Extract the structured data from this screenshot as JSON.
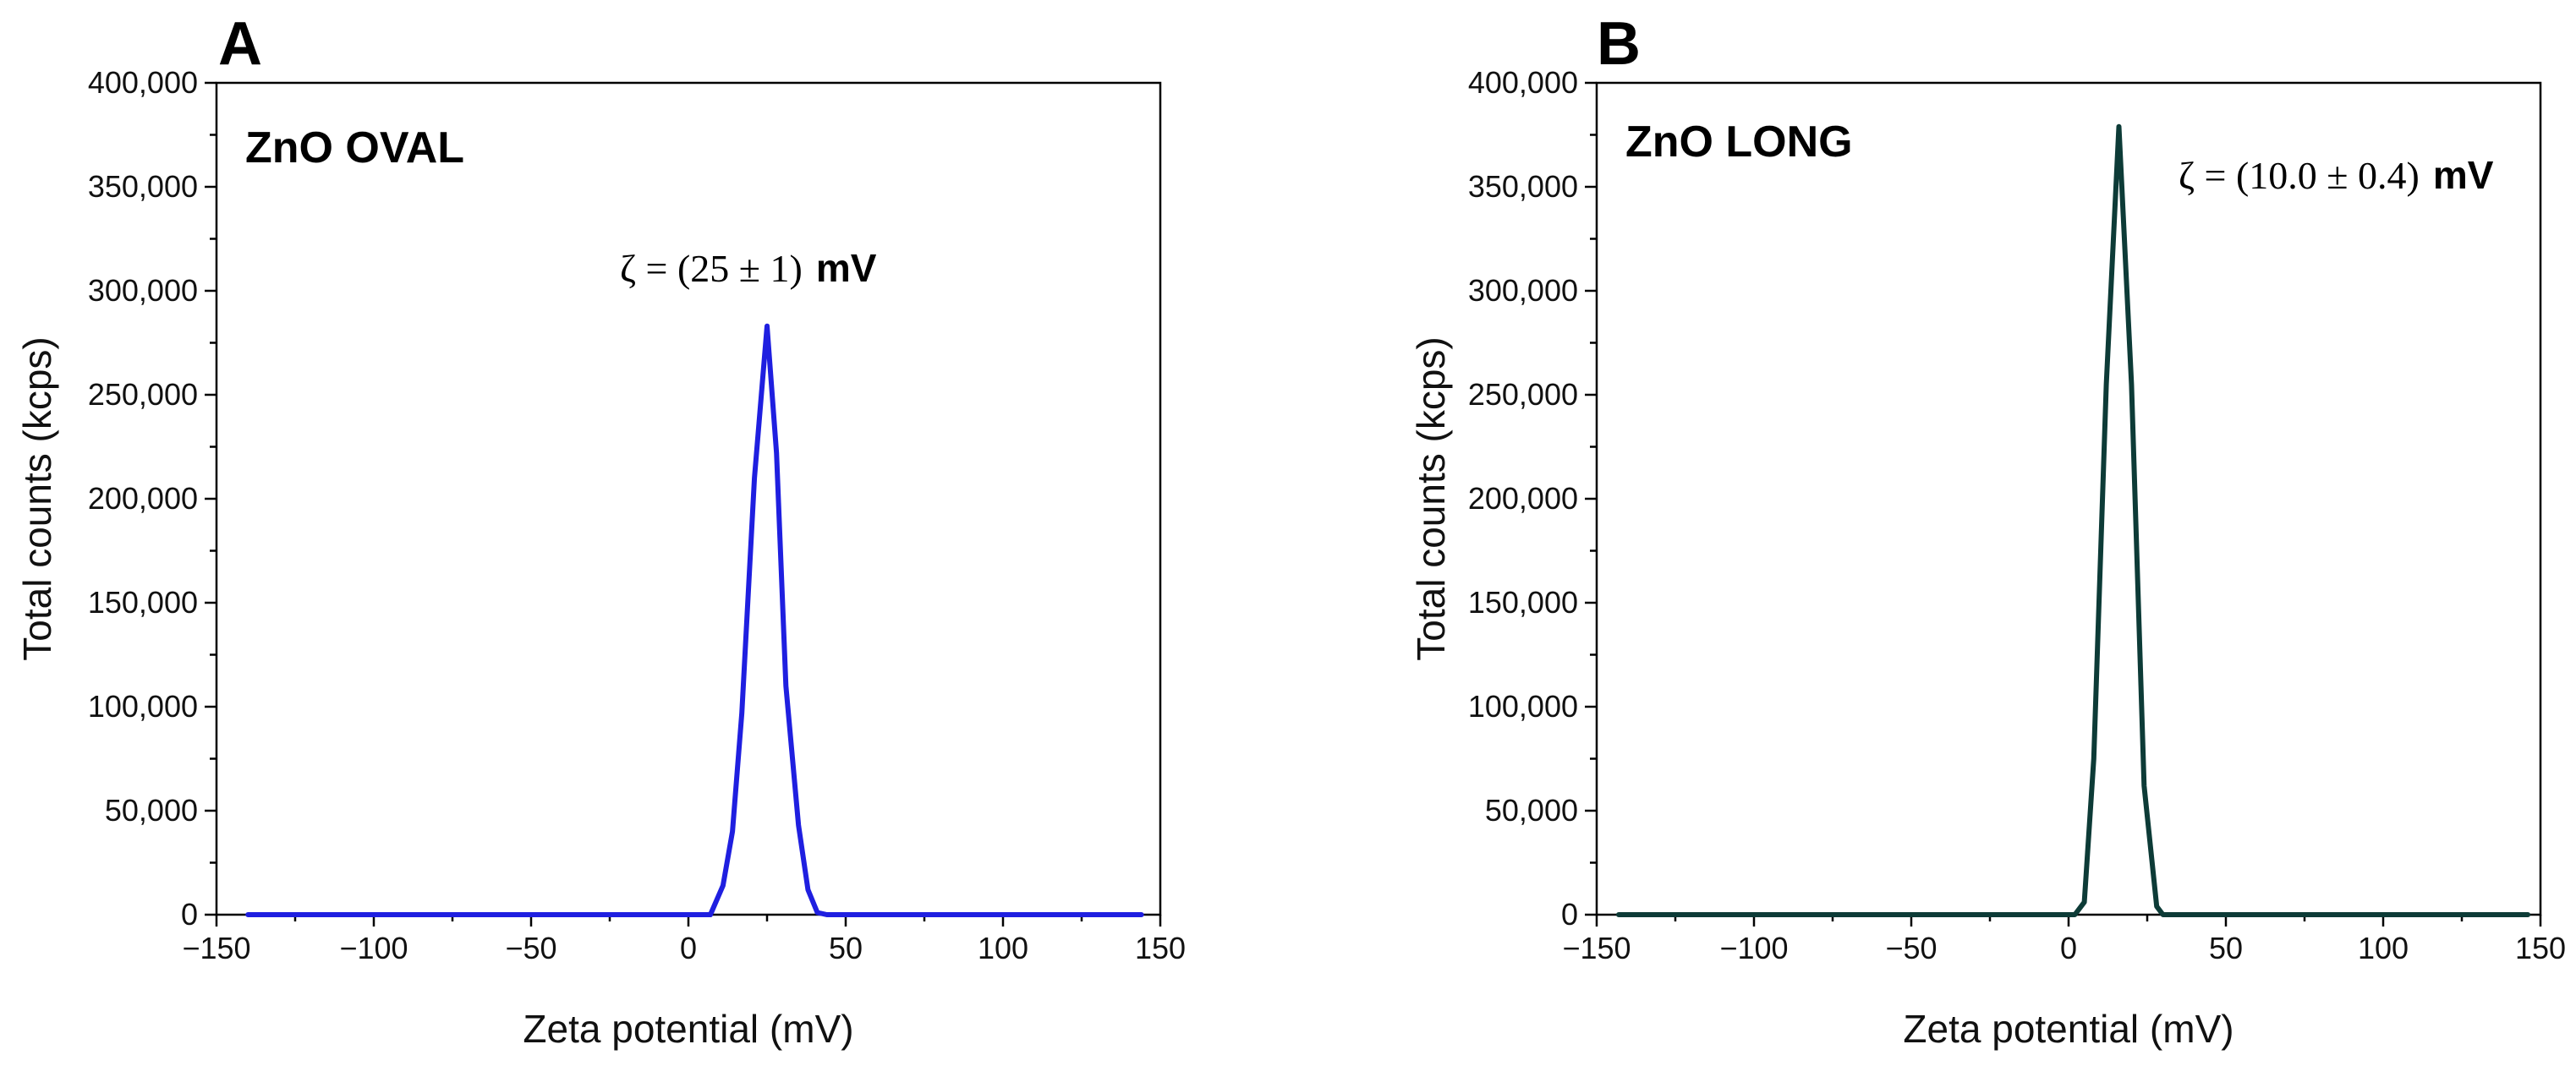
{
  "chart_data": [
    {
      "type": "line",
      "panel": "A",
      "annotation_label": "ZnO OVAL",
      "zeta_text": "ζ = (25 ± 1)",
      "zeta_unit": "mV",
      "xlabel": "Zeta potential (mV)",
      "ylabel": "Total counts (kcps)",
      "xlim": [
        -150,
        150
      ],
      "ylim": [
        0,
        400000
      ],
      "x_ticks": [
        -150,
        -100,
        -50,
        0,
        50,
        100,
        150
      ],
      "x_tick_labels": [
        "−150",
        "−100",
        "−50",
        "0",
        "50",
        "100",
        "150"
      ],
      "y_ticks": [
        0,
        50000,
        100000,
        150000,
        200000,
        250000,
        300000,
        350000,
        400000
      ],
      "y_tick_labels": [
        "0",
        "50,000",
        "100,000",
        "150,000",
        "200,000",
        "250,000",
        "300,000",
        "350,000",
        "400,000"
      ],
      "line_color": "#1f1fe0",
      "series": [
        {
          "name": "ZnO OVAL",
          "x": [
            -140,
            -100,
            -50,
            0,
            7,
            11,
            14,
            17,
            21,
            25,
            28,
            31,
            35,
            38,
            41,
            44,
            60,
            100,
            144
          ],
          "y": [
            0,
            0,
            0,
            0,
            0,
            14000,
            40000,
            97000,
            210000,
            283000,
            222000,
            110000,
            43000,
            12000,
            1000,
            0,
            0,
            0,
            0
          ]
        }
      ]
    },
    {
      "type": "line",
      "panel": "B",
      "annotation_label": "ZnO LONG",
      "zeta_text": "ζ = (10.0 ± 0.4)",
      "zeta_unit": "mV",
      "xlabel": "Zeta potential (mV)",
      "ylabel": "Total counts (kcps)",
      "xlim": [
        -150,
        150
      ],
      "ylim": [
        0,
        400000
      ],
      "x_ticks": [
        -150,
        -100,
        -50,
        0,
        50,
        100,
        150
      ],
      "x_tick_labels": [
        "−150",
        "−100",
        "−50",
        "0",
        "50",
        "100",
        "150"
      ],
      "y_ticks": [
        0,
        50000,
        100000,
        150000,
        200000,
        250000,
        300000,
        350000,
        400000
      ],
      "y_tick_labels": [
        "0",
        "50,000",
        "100,000",
        "150,000",
        "200,000",
        "250,000",
        "300,000",
        "350,000",
        "400,000"
      ],
      "line_color": "#0d3b37",
      "series": [
        {
          "name": "ZnO LONG",
          "x": [
            -143,
            -100,
            -50,
            0,
            2,
            5,
            8,
            12,
            16,
            20,
            24,
            28,
            30,
            60,
            100,
            146
          ],
          "y": [
            0,
            0,
            0,
            0,
            0,
            6000,
            75000,
            255000,
            379000,
            255000,
            62000,
            4000,
            0,
            0,
            0,
            0
          ]
        }
      ]
    }
  ]
}
